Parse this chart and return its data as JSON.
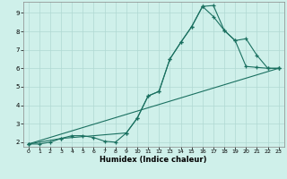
{
  "xlabel": "Humidex (Indice chaleur)",
  "bg_color": "#cff0ea",
  "grid_color": "#b0d8d2",
  "line_color": "#1a7060",
  "xlim": [
    -0.5,
    23.5
  ],
  "ylim": [
    1.75,
    9.6
  ],
  "xticks": [
    0,
    1,
    2,
    3,
    4,
    5,
    6,
    7,
    8,
    9,
    10,
    11,
    12,
    13,
    14,
    15,
    16,
    17,
    18,
    19,
    20,
    21,
    22,
    23
  ],
  "yticks": [
    2,
    3,
    4,
    5,
    6,
    7,
    8,
    9
  ],
  "line1_x": [
    0,
    1,
    2,
    3,
    4,
    5,
    6,
    7,
    8,
    9,
    10,
    11,
    12,
    13,
    14,
    15,
    16,
    17,
    18,
    19,
    20,
    21,
    22,
    23
  ],
  "line1_y": [
    1.9,
    1.9,
    2.0,
    2.2,
    2.35,
    2.35,
    2.25,
    2.05,
    2.0,
    2.5,
    3.3,
    4.5,
    4.75,
    6.5,
    7.4,
    8.25,
    9.35,
    9.4,
    8.05,
    7.5,
    6.1,
    6.05,
    6.0,
    6.0
  ],
  "line2_x": [
    0,
    3,
    9,
    10,
    11,
    12,
    13,
    14,
    15,
    16,
    17,
    18,
    19,
    20,
    21,
    22,
    23
  ],
  "line2_y": [
    1.9,
    2.2,
    2.5,
    3.3,
    4.5,
    4.75,
    6.5,
    7.4,
    8.25,
    9.35,
    8.8,
    8.05,
    7.5,
    7.6,
    6.7,
    6.0,
    6.0
  ],
  "line3_x": [
    0,
    3,
    9,
    10,
    11,
    12,
    13,
    14,
    15,
    16,
    17,
    18,
    19,
    20,
    21,
    22,
    23
  ],
  "line3_y": [
    1.9,
    2.2,
    2.5,
    3.3,
    4.5,
    4.75,
    6.5,
    7.4,
    8.25,
    9.35,
    8.8,
    8.05,
    7.5,
    7.6,
    6.7,
    6.0,
    6.0
  ]
}
